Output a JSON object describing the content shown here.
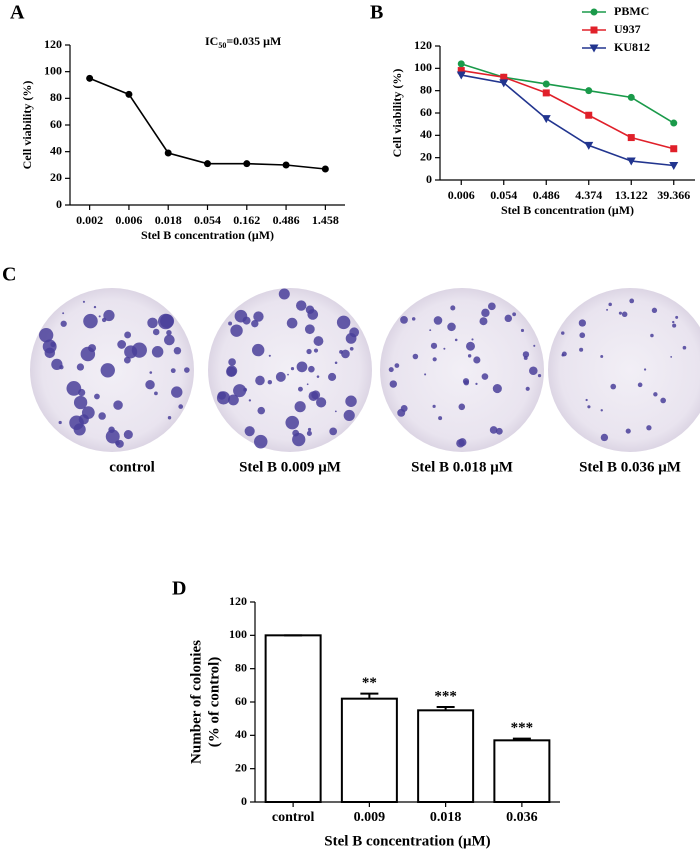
{
  "chart_data": [
    {
      "type": "line",
      "panel_label": "A",
      "annotation": {
        "text": "IC",
        "subscript": "50",
        "suffix": "=0.035 μM"
      },
      "categories": [
        "0.002",
        "0.006",
        "0.018",
        "0.054",
        "0.162",
        "0.486",
        "1.458"
      ],
      "values": [
        95,
        83,
        39,
        31,
        31,
        30,
        27
      ],
      "color": "#000000",
      "ylim": [
        0,
        120
      ],
      "yticks": [
        0,
        20,
        40,
        60,
        80,
        100,
        120
      ],
      "ylabel": "Cell viability (%)",
      "xlabel": "Stel B concentration (μM)"
    },
    {
      "type": "line",
      "panel_label": "B",
      "categories": [
        "0.006",
        "0.054",
        "0.486",
        "4.374",
        "13.122",
        "39.366"
      ],
      "series": [
        {
          "name": "PBMC",
          "color": "#1a9a4a",
          "marker": "circle",
          "values": [
            104,
            92,
            86,
            80,
            74,
            51
          ]
        },
        {
          "name": "U937",
          "color": "#e0202a",
          "marker": "square",
          "values": [
            98,
            92,
            78,
            58,
            38,
            28
          ]
        },
        {
          "name": "KU812",
          "color": "#22358f",
          "marker": "triangle-down",
          "values": [
            94,
            87,
            55,
            31,
            17,
            13
          ]
        }
      ],
      "ylim": [
        0,
        120
      ],
      "yticks": [
        0,
        20,
        40,
        60,
        80,
        100,
        120
      ],
      "ylabel": "Cell viability (%)",
      "xlabel": "Stel B concentration (μM)",
      "legend": "top-right"
    },
    {
      "type": "bar",
      "panel_label": "D",
      "categories": [
        "control",
        "0.009",
        "0.018",
        "0.036"
      ],
      "values": [
        100,
        62,
        55,
        37
      ],
      "errors": [
        0,
        3,
        2,
        1
      ],
      "significance": [
        null,
        "**",
        "***",
        "***"
      ],
      "color": "#ffffff",
      "ylim": [
        0,
        120
      ],
      "yticks": [
        0,
        20,
        40,
        60,
        80,
        100,
        120
      ],
      "ylabel": [
        "Number of colonies",
        "(% of control)"
      ],
      "xlabel": "Stel B concentration (μM)"
    }
  ],
  "panel_c": {
    "panel_label": "C",
    "captions": [
      "control",
      "Stel B 0.009 μM",
      "Stel B 0.018 μM",
      "Stel B 0.036 μM"
    ]
  }
}
